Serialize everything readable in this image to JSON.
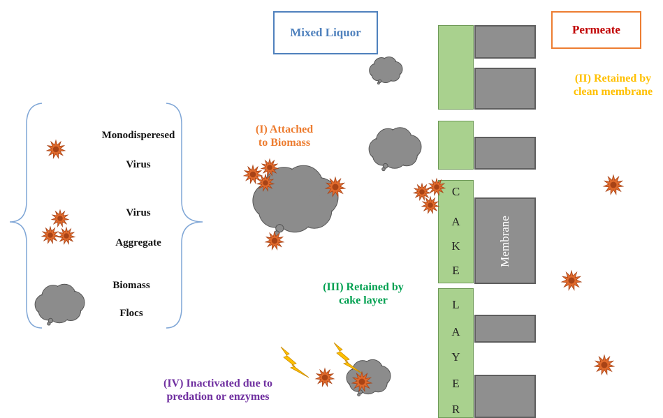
{
  "header_boxes": {
    "mixed_liquor": "Mixed Liquor",
    "permeate": "Permeate"
  },
  "legend": {
    "monodispersed_line1": "Monodisperesed",
    "monodispersed_line2": "Virus",
    "aggregate_line1": "Virus",
    "aggregate_line2": "Aggregate",
    "biomass_line1": "Biomass",
    "biomass_line2": "Flocs"
  },
  "mechanisms": {
    "attached_line1": "(I) Attached",
    "attached_line2": "to Biomass",
    "clean_membrane_line1": "(II) Retained by",
    "clean_membrane_line2": "clean membrane",
    "cake_layer_line1": "(III) Retained by",
    "cake_layer_line2": "cake layer",
    "inactivated_line1": "(IV) Inactivated due to",
    "inactivated_line2": "predation or enzymes"
  },
  "cake_letters": [
    "C",
    "A",
    "K",
    "E",
    "L",
    "A",
    "Y",
    "E",
    "R"
  ],
  "membrane_label": "Membrane",
  "colors": {
    "mixed_liquor_border": "#4f81bd",
    "mixed_liquor_text": "#4f81bd",
    "permeate_border": "#ed7d31",
    "permeate_text": "#c00000",
    "attached_text": "#ed7d31",
    "clean_membrane_text": "#ffc000",
    "cake_layer_text": "#00a050",
    "inactivated_text": "#7030a0",
    "virus_fill": "#e06a2c",
    "virus_core": "#a84316",
    "floc_fill": "#8c8c8c",
    "lightning_fill": "#ffc000",
    "cake_fill": "#a9d18e",
    "membrane_fill": "#8f8f8f",
    "legend_brace": "#7fa6d6"
  }
}
